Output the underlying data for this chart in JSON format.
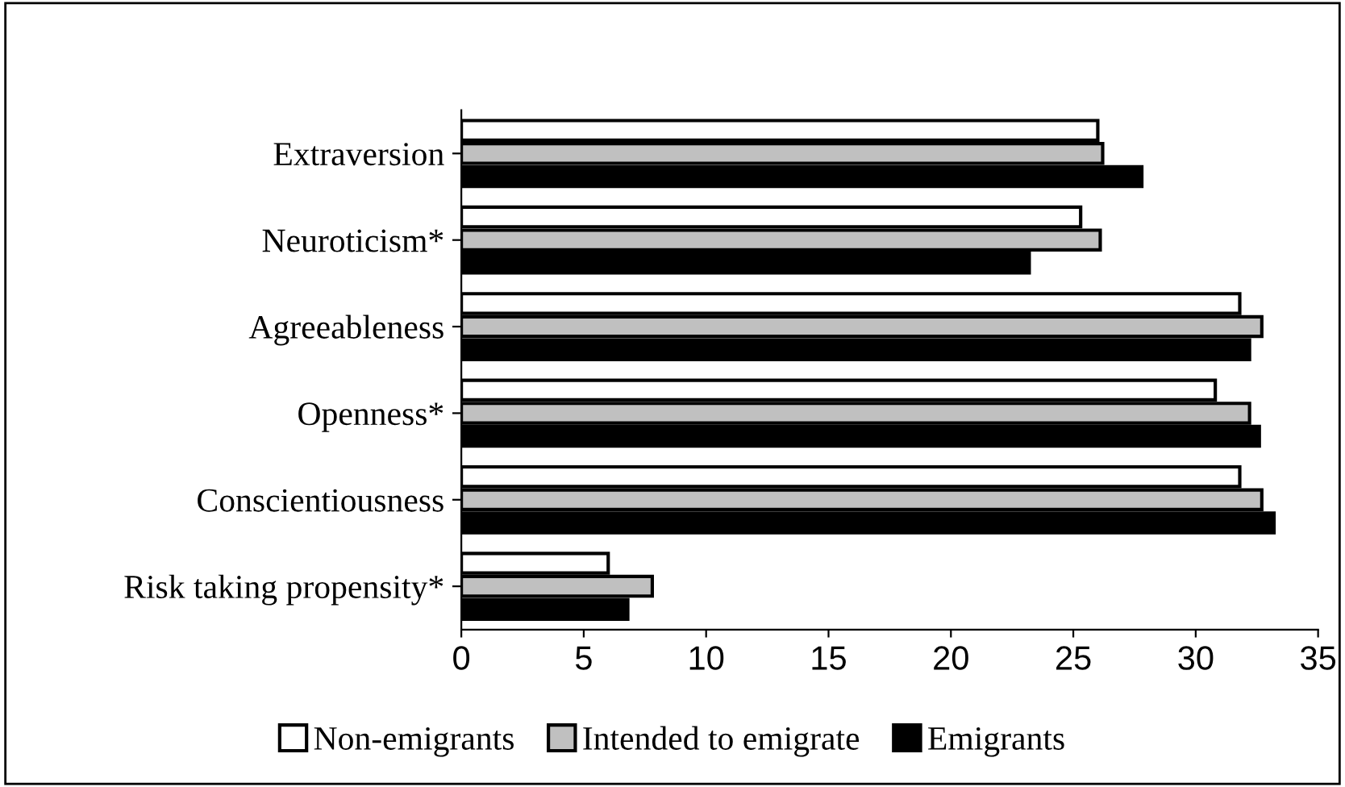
{
  "chart_data": {
    "type": "bar",
    "orientation": "horizontal",
    "categories": [
      "Extraversion",
      "Neuroticism*",
      "Agreeableness",
      "Openness*",
      "Conscientiousness",
      "Risk taking propensity*"
    ],
    "series": [
      {
        "name": "Non-emigrants",
        "color": "#ffffff",
        "values": [
          26.0,
          25.3,
          31.8,
          30.8,
          31.8,
          6.0
        ]
      },
      {
        "name": "Intended to emigrate",
        "color": "#c0c0c0",
        "values": [
          26.2,
          26.1,
          32.7,
          32.2,
          32.7,
          7.8
        ]
      },
      {
        "name": "Emigrants",
        "color": "#000000",
        "values": [
          27.8,
          23.2,
          32.2,
          32.6,
          33.2,
          6.8
        ]
      }
    ],
    "xlim": [
      0,
      35
    ],
    "xticks": [
      0,
      5,
      10,
      15,
      20,
      25,
      30,
      35
    ],
    "grid": false,
    "legend": "bottom"
  }
}
